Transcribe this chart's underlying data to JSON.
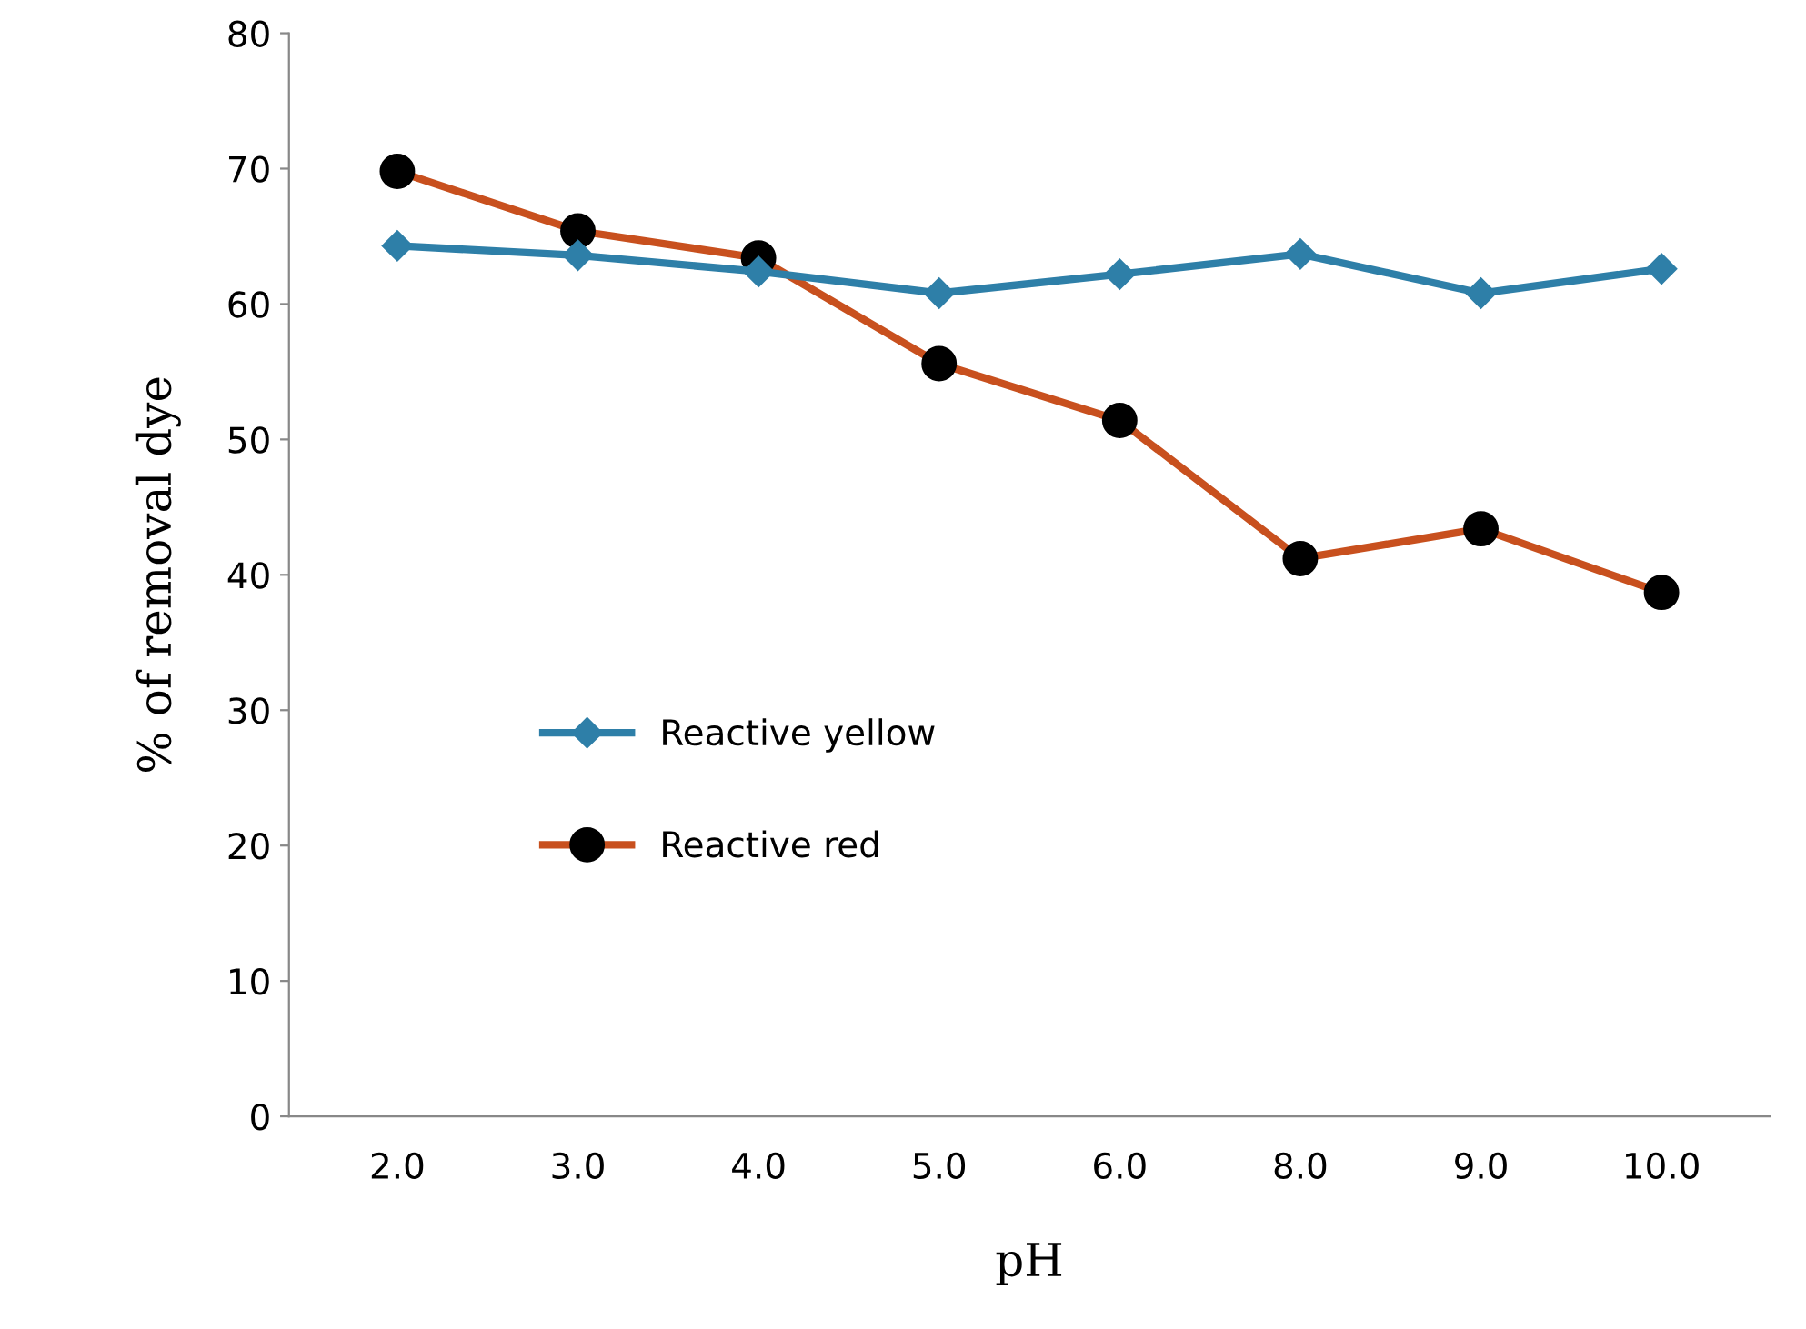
{
  "chart_data": {
    "type": "line",
    "xlabel": "pH",
    "ylabel": "% of removal dye",
    "categories": [
      "2.0",
      "3.0",
      "4.0",
      "5.0",
      "6.0",
      "8.0",
      "9.0",
      "10.0"
    ],
    "ylim": [
      0,
      80
    ],
    "yticks": [
      0,
      10,
      20,
      30,
      40,
      50,
      60,
      70,
      80
    ],
    "grid": false,
    "legend": "left",
    "series": [
      {
        "name": "Reactive yellow",
        "color": "#2e7fa8",
        "marker": "diamond",
        "values": [
          64.3,
          63.6,
          62.4,
          60.8,
          62.2,
          63.7,
          60.8,
          62.6
        ]
      },
      {
        "name": "Reactive red",
        "color": "#c8501e",
        "marker": "circle",
        "values": [
          69.8,
          65.4,
          63.4,
          55.6,
          51.4,
          41.2,
          43.4,
          38.7
        ]
      }
    ]
  }
}
